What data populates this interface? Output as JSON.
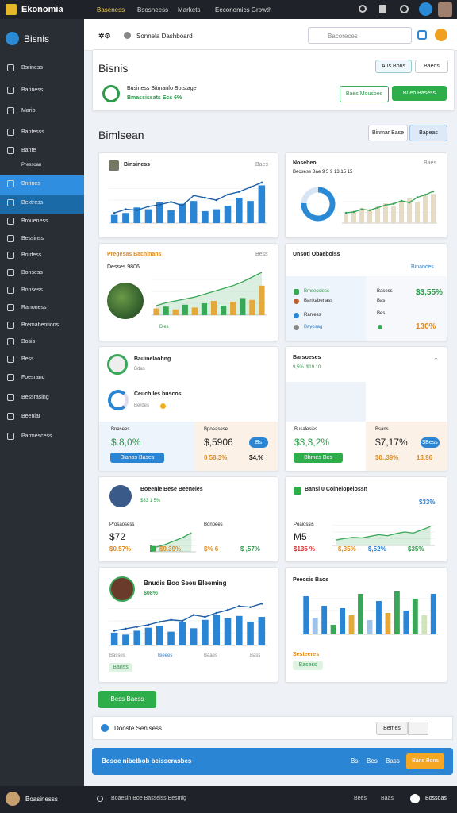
{
  "topbar": {
    "brand": "Ekonomia",
    "nav": [
      "Baseness",
      "Bsosneess",
      "Markets",
      "Eeconomics Growth"
    ]
  },
  "sidebar": {
    "brand": "Bisnis",
    "items": [
      "Bsriness",
      "Bariness",
      "Mario",
      "Bantesss",
      "Bante",
      "Pressoan",
      "Bnrines",
      "Bextress",
      "Broueness",
      "Bessinss",
      "Botdess",
      "Bonsess",
      "Bonsess",
      "Ranoness",
      "Bremabeotions",
      "Bosis",
      "Bess",
      "Foesrand",
      "Bessrasing",
      "Beenlar",
      "Parmescess"
    ]
  },
  "header": {
    "title": "Sonnela Dashboard",
    "search": "Bacoreces"
  },
  "panel": {
    "title": "Bisnis",
    "line1": "Business Bitmanfo Botstage",
    "line2": "Bmassissats Ecs 6%",
    "buttons": [
      "Aus Bons",
      "Baeos",
      "Baes Mousoes",
      "Bueo Basess"
    ]
  },
  "section": {
    "title": "Bimlsean",
    "buttons": [
      "Binmar Base",
      "Bapeas"
    ]
  },
  "cards": [
    {
      "title": "Binsiness",
      "right": "Baes",
      "chart": {
        "type": "bar-line",
        "ylim": [
          0,
          100
        ],
        "color": "#2a86d4",
        "line_color": "#1d5fa6",
        "bars": [
          18,
          22,
          34,
          30,
          45,
          28,
          42,
          48,
          26,
          30,
          38,
          55,
          48,
          82
        ],
        "line": [
          22,
          30,
          28,
          36,
          40,
          46,
          38,
          60,
          55,
          50,
          62,
          68,
          78,
          88
        ]
      }
    },
    {
      "title": "Nosebeo",
      "subtitle": "Beosess Bae 9 5 9 13 15 15",
      "right": "Baes",
      "donut": {
        "type": "donut",
        "values": [
          76,
          24
        ],
        "colors": [
          "#2a8ad6",
          "#d7e6f5"
        ]
      },
      "chart": {
        "type": "bar-line",
        "ylim": [
          0,
          100
        ],
        "color": "#e6dcc6",
        "line_color": "#3aa657",
        "bars": [
          20,
          28,
          35,
          30,
          38,
          46,
          40,
          52,
          58,
          50,
          64,
          68
        ],
        "line": [
          24,
          26,
          32,
          30,
          36,
          42,
          45,
          52,
          48,
          60,
          66,
          74
        ]
      }
    },
    {
      "title": "Pregesas Bachinans",
      "right": "Bess",
      "subtitle": "Desses 9806",
      "foot": "Bies",
      "chart": {
        "type": "bar-area",
        "ylim": [
          0,
          100
        ],
        "colors": [
          "#e3a93a",
          "#3aa657",
          "#e3a93a",
          "#3aa657",
          "#e3a93a",
          "#3aa657",
          "#e3a93a",
          "#3aa657",
          "#e3a93a",
          "#3aa657",
          "#e3a93a",
          "#e3a93a"
        ],
        "line_color": "#3aa657",
        "bars": [
          14,
          18,
          12,
          22,
          16,
          25,
          30,
          20,
          28,
          36,
          32,
          62
        ],
        "area": [
          20,
          26,
          30,
          34,
          38,
          44,
          50,
          56,
          62,
          70,
          80,
          90
        ]
      }
    },
    {
      "title": "Unsotl Obaeboiss",
      "right": "Binances",
      "rows": [
        "Bmsessless",
        "Bankabenass",
        "Ranless",
        "Bayosag"
      ],
      "mid": [
        "Basess",
        "Bas",
        "Bes"
      ],
      "values": [
        "$3,55%",
        "130%"
      ]
    },
    {
      "title": "Bauinelaohng",
      "subtitle": "Bdas",
      "note": "Ceuch les buscos",
      "note2": "Berdes",
      "stats": [
        "Bnasees",
        "$.8,0%",
        "Bianos Bases",
        "Bpoeasese",
        "$,5906",
        "Bs",
        "0 58,3%",
        "$4,%"
      ]
    },
    {
      "title": "Barsoeses",
      "subtitle": "9,5%. $19 10",
      "stats": [
        "Busalesies",
        "$3,3,2%",
        "Bhmes Bes",
        "Bsans",
        "$7,17%",
        "$Bess",
        "$0.,39%",
        "13,96"
      ]
    },
    {
      "title": "Boeenle Bese Beeneles",
      "subtitle": "$33 1 5%",
      "stats": [
        "Prosaosess",
        "$72",
        "$0.57%",
        "$9.39%",
        "Bonoees",
        "$% 6",
        "$ ,57%"
      ],
      "chart": {
        "type": "area",
        "ylim": [
          0,
          100
        ],
        "line_color": "#3aa657",
        "area": [
          20,
          30,
          45,
          60,
          80
        ]
      }
    },
    {
      "title": "Bansl 0 Colnelopeiossn",
      "right": "$33%",
      "stats": [
        "Poaiossis",
        "M5",
        "$135 %",
        "$,35%",
        "$,52%",
        "$35%"
      ],
      "chart": {
        "type": "area",
        "ylim": [
          0,
          100
        ],
        "line_color": "#3aa657",
        "area": [
          20,
          26,
          30,
          28,
          34,
          40,
          36,
          44,
          50,
          46,
          58,
          70
        ]
      }
    },
    {
      "title": "Bnudis Boo Seeu Bleeming",
      "subtitle": "$08%",
      "stats": [
        "Basses",
        "Bieees",
        "Baaes",
        "Bass",
        "Banss"
      ],
      "chart": {
        "type": "bar-line",
        "ylim": [
          0,
          100
        ],
        "color": "#2a86d4",
        "line_color": "#1d5fa6",
        "bars": [
          26,
          22,
          30,
          36,
          40,
          28,
          48,
          35,
          52,
          62,
          55,
          60,
          48,
          58
        ],
        "line": [
          30,
          34,
          38,
          42,
          48,
          52,
          50,
          62,
          58,
          66,
          72,
          80,
          78,
          85
        ]
      }
    },
    {
      "title": "Peecsis Baos",
      "stats": [
        "Sesteeres",
        "Basess"
      ],
      "chart": {
        "type": "bar",
        "ylim": [
          0,
          100
        ],
        "colors": [
          "#2a86d4",
          "#9fc3e6",
          "#2a86d4",
          "#3aa657",
          "#2a86d4",
          "#e3a93a",
          "#3aa657",
          "#9fc3e6",
          "#2a86d4",
          "#e3a93a",
          "#3aa657",
          "#2a86d4",
          "#3aa657",
          "#cfe3b8",
          "#2a86d4"
        ],
        "bars": [
          80,
          35,
          60,
          20,
          55,
          40,
          85,
          30,
          70,
          45,
          90,
          50,
          75,
          40,
          85
        ]
      }
    }
  ],
  "action_button": "Bess Baess",
  "footer": {
    "text": "Dooste Senisess",
    "button": "Bemes"
  },
  "banner": {
    "text": "Bosoe nibetbob beisserasbes",
    "links": [
      "Bs",
      "Bes",
      "Bass"
    ],
    "button": "Bans Bons"
  },
  "bottombar": {
    "brand": "Boasinesss",
    "links": [
      "Boaesin Boe Basselss Besmig",
      "Bees",
      "Baas"
    ],
    "right": "Bossoas"
  }
}
